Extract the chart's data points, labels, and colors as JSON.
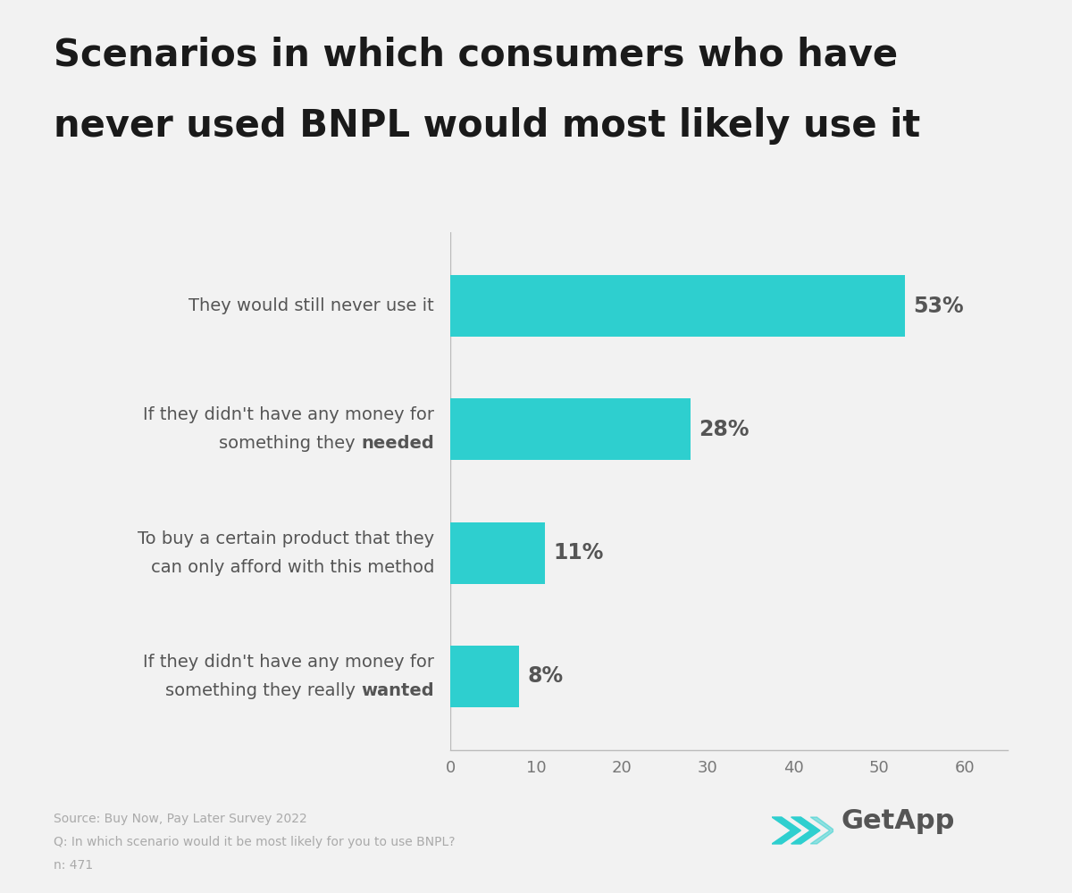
{
  "title_line1": "Scenarios in which consumers who have",
  "title_line2": "never used BNPL would most likely use it",
  "categories": [
    [
      "They would still never use it"
    ],
    [
      "If they didn't have any money for",
      "something they ",
      "needed",
      ""
    ],
    [
      "To buy a certain product that they",
      "can only afford with this method"
    ],
    [
      "If they didn't have any money for",
      "something they really ",
      "wanted",
      ""
    ]
  ],
  "values": [
    53,
    28,
    11,
    8
  ],
  "bar_color": "#2ecfcf",
  "label_color": "#555555",
  "background_color": "#f2f2f2",
  "title_color": "#1a1a1a",
  "xlim": [
    0,
    65
  ],
  "xticks": [
    0,
    10,
    20,
    30,
    40,
    50,
    60
  ],
  "footnote_lines": [
    "Source: Buy Now, Pay Later Survey 2022",
    "Q: In which scenario would it be most likely for you to use BNPL?",
    "n: 471"
  ],
  "bar_height": 0.5,
  "label_fontsize": 14,
  "pct_fontsize": 17,
  "title_fontsize": 30
}
